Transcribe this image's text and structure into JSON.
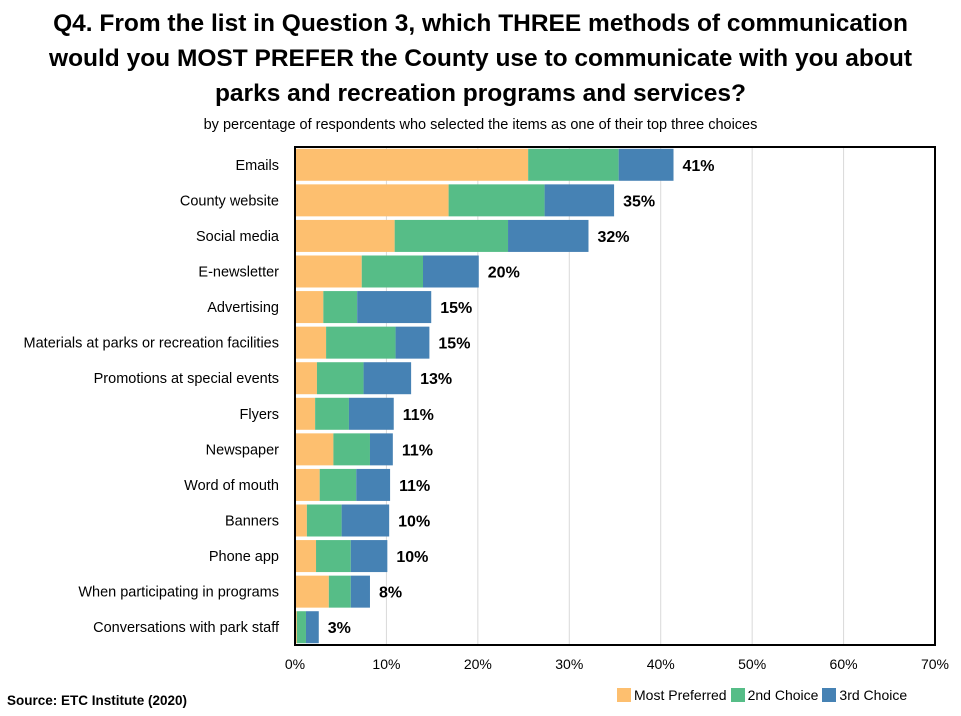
{
  "chart_data": {
    "type": "bar",
    "orientation": "horizontal",
    "stacked": true,
    "title": "Q4. From the list in Question 3, which THREE methods of communication would you MOST PREFER the County use to communicate with you about parks and recreation programs and services?",
    "subtitle": "by percentage of respondents who selected the items as one of their top three choices",
    "categories": [
      "Emails",
      "County website",
      "Social media",
      "E-newsletter",
      "Advertising",
      "Materials at parks or recreation facilities",
      "Promotions at special events",
      "Flyers",
      "Newspaper",
      "Word of mouth",
      "Banners",
      "Phone app",
      "When participating in programs",
      "Conversations with park staff"
    ],
    "series": [
      {
        "name": "Most Preferred",
        "color": "#FDBF6F",
        "values": [
          25.5,
          16.8,
          10.9,
          7.3,
          3.1,
          3.4,
          2.4,
          2.2,
          4.2,
          2.7,
          1.3,
          2.3,
          3.7,
          0.2
        ]
      },
      {
        "name": "2nd Choice",
        "color": "#56BD87",
        "values": [
          9.9,
          10.5,
          12.4,
          6.7,
          3.7,
          7.6,
          5.1,
          3.7,
          4.0,
          4.0,
          3.8,
          3.8,
          2.4,
          1.0
        ]
      },
      {
        "name": "3rd Choice",
        "color": "#4682B4",
        "values": [
          6.0,
          7.6,
          8.8,
          6.1,
          8.1,
          3.7,
          5.2,
          4.9,
          2.5,
          3.7,
          5.2,
          4.0,
          2.1,
          1.4
        ]
      }
    ],
    "totals": [
      "41%",
      "35%",
      "32%",
      "20%",
      "15%",
      "15%",
      "13%",
      "11%",
      "11%",
      "11%",
      "10%",
      "10%",
      "8%",
      "3%"
    ],
    "xlim": [
      0,
      70
    ],
    "xticks": [
      "0%",
      "10%",
      "20%",
      "30%",
      "40%",
      "50%",
      "60%",
      "70%"
    ],
    "xtick_values": [
      0,
      10,
      20,
      30,
      40,
      50,
      60,
      70
    ],
    "grid": true,
    "legend_position": "bottom-right"
  },
  "source": "Source:  ETC Institute (2020)",
  "title_lines": [
    "Q4. From the list in Question 3, which THREE methods of communication",
    "would you MOST PREFER the County use to communicate with you about",
    "parks and recreation programs and services?"
  ]
}
